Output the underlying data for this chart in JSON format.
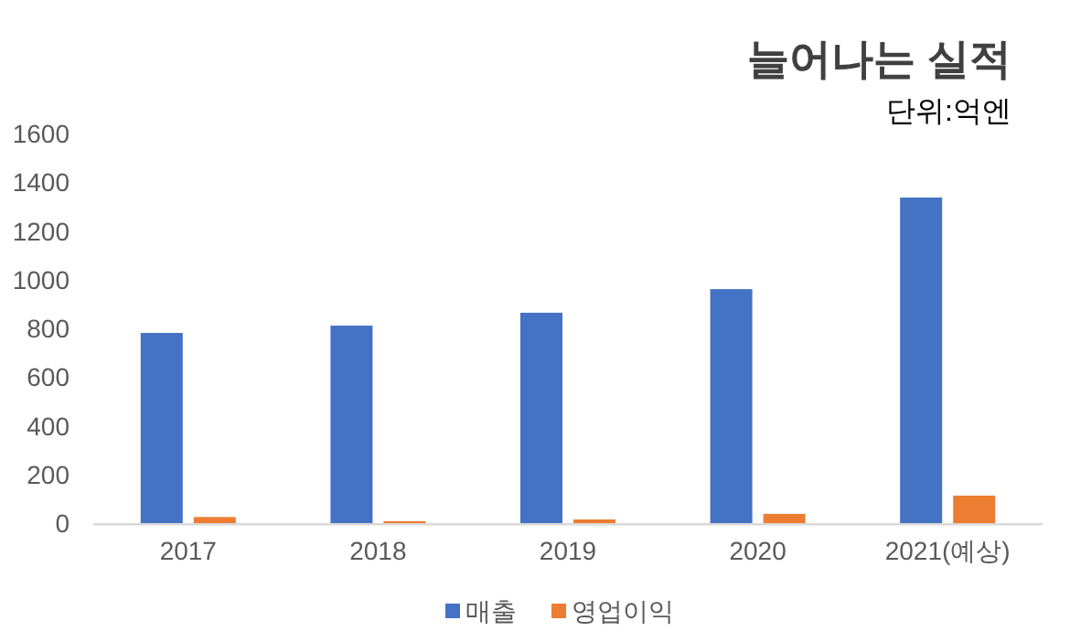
{
  "chart_data": {
    "type": "bar",
    "title": "늘어나는 실적",
    "subtitle": "단위:억엔",
    "categories": [
      "2017",
      "2018",
      "2019",
      "2020",
      "2021(예상)"
    ],
    "series": [
      {
        "name": "매출",
        "color": "#4472c4",
        "values": [
          781,
          811,
          864,
          961,
          1337
        ]
      },
      {
        "name": "영업이익",
        "color": "#ed7d31",
        "values": [
          25,
          8,
          15,
          38,
          113
        ]
      }
    ],
    "ylim": [
      0,
      1600
    ],
    "yticks": [
      0,
      200,
      400,
      600,
      800,
      1000,
      1200,
      1400,
      1600
    ],
    "legend": "bottom"
  }
}
